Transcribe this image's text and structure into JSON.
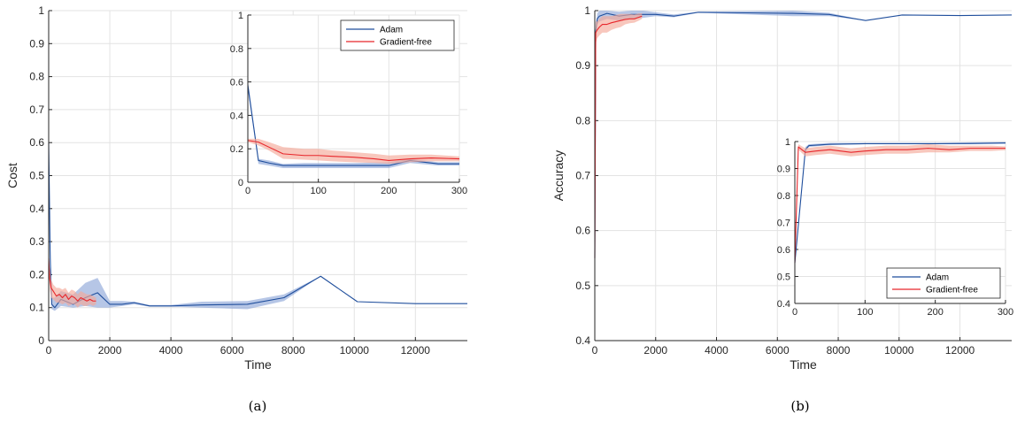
{
  "chart_data": [
    {
      "id": "a",
      "type": "line",
      "caption": "(a)",
      "xlabel": "Time",
      "ylabel": "Cost",
      "xlim": [
        0,
        13700
      ],
      "ylim": [
        0,
        1
      ],
      "xticks": [
        0,
        2000,
        4000,
        6000,
        8000,
        10000,
        12000
      ],
      "yticks": [
        0,
        0.1,
        0.2,
        0.3,
        0.4,
        0.5,
        0.6,
        0.7,
        0.8,
        0.9,
        1
      ],
      "grid": true,
      "series": [
        {
          "name": "Adam",
          "color": "#1f4e9c",
          "band_color": "#8fa8d8",
          "x": [
            0,
            50,
            100,
            200,
            400,
            800,
            1200,
            1600,
            2000,
            2400,
            2800,
            3300,
            4000,
            5000,
            6500,
            7700,
            8900,
            10100,
            12000,
            13700
          ],
          "y": [
            0.6,
            0.25,
            0.11,
            0.1,
            0.125,
            0.11,
            0.13,
            0.145,
            0.11,
            0.11,
            0.115,
            0.105,
            0.105,
            0.108,
            0.11,
            0.13,
            0.195,
            0.118,
            0.112,
            0.112
          ],
          "lower": [
            0.55,
            0.2,
            0.095,
            0.09,
            0.105,
            0.1,
            0.105,
            0.1,
            0.1,
            0.105,
            0.11,
            0.103,
            0.103,
            0.1,
            0.095,
            0.12,
            0.195,
            0.118,
            0.112,
            0.112
          ],
          "upper": [
            0.65,
            0.3,
            0.13,
            0.13,
            0.15,
            0.14,
            0.175,
            0.19,
            0.12,
            0.12,
            0.118,
            0.108,
            0.108,
            0.118,
            0.12,
            0.14,
            0.195,
            0.118,
            0.112,
            0.112
          ]
        },
        {
          "name": "Gradient-free",
          "color": "#e8262b",
          "band_color": "#f5a99a",
          "x": [
            0,
            30,
            80,
            150,
            250,
            350,
            450,
            550,
            650,
            750,
            850,
            950,
            1050,
            1150,
            1250,
            1350,
            1450,
            1550
          ],
          "y": [
            0.25,
            0.19,
            0.16,
            0.15,
            0.135,
            0.14,
            0.13,
            0.14,
            0.125,
            0.135,
            0.13,
            0.12,
            0.13,
            0.125,
            0.12,
            0.125,
            0.12,
            0.12
          ],
          "lower": [
            0.23,
            0.16,
            0.13,
            0.125,
            0.115,
            0.115,
            0.11,
            0.115,
            0.105,
            0.11,
            0.11,
            0.1,
            0.11,
            0.105,
            0.105,
            0.11,
            0.105,
            0.11
          ],
          "upper": [
            0.27,
            0.22,
            0.185,
            0.17,
            0.16,
            0.16,
            0.155,
            0.16,
            0.145,
            0.155,
            0.15,
            0.14,
            0.15,
            0.145,
            0.14,
            0.14,
            0.135,
            0.13
          ]
        }
      ],
      "inset": {
        "xlim": [
          0,
          300
        ],
        "ylim": [
          0,
          1
        ],
        "xticks": [
          0,
          100,
          200,
          300
        ],
        "yticks": [
          0,
          0.2,
          0.4,
          0.6,
          0.8,
          1
        ],
        "legend": "top-right",
        "series": [
          {
            "name": "Adam",
            "x": [
              0,
              15,
              30,
              50,
              80,
              100,
              150,
              200,
              230,
              270,
              300
            ],
            "y": [
              0.58,
              0.13,
              0.115,
              0.1,
              0.1,
              0.1,
              0.1,
              0.1,
              0.13,
              0.11,
              0.11
            ],
            "lower": [
              0.55,
              0.11,
              0.1,
              0.085,
              0.085,
              0.085,
              0.085,
              0.085,
              0.115,
              0.1,
              0.1
            ],
            "upper": [
              0.61,
              0.14,
              0.13,
              0.11,
              0.115,
              0.115,
              0.115,
              0.12,
              0.14,
              0.12,
              0.12
            ]
          },
          {
            "name": "Gradient-free",
            "x": [
              0,
              15,
              30,
              50,
              80,
              100,
              120,
              150,
              180,
              200,
              230,
              260,
              300
            ],
            "y": [
              0.25,
              0.24,
              0.21,
              0.17,
              0.16,
              0.16,
              0.155,
              0.15,
              0.14,
              0.13,
              0.14,
              0.145,
              0.14
            ],
            "lower": [
              0.24,
              0.22,
              0.19,
              0.14,
              0.135,
              0.13,
              0.125,
              0.12,
              0.115,
              0.11,
              0.12,
              0.125,
              0.125
            ],
            "upper": [
              0.26,
              0.26,
              0.24,
              0.21,
              0.2,
              0.2,
              0.19,
              0.18,
              0.17,
              0.16,
              0.165,
              0.165,
              0.155
            ]
          }
        ]
      }
    },
    {
      "id": "b",
      "type": "line",
      "caption": "(b)",
      "xlabel": "Time",
      "ylabel": "Accuracy",
      "xlim": [
        0,
        13700
      ],
      "ylim": [
        0.4,
        1
      ],
      "xticks": [
        0,
        2000,
        4000,
        6000,
        8000,
        10000,
        12000
      ],
      "yticks": [
        0.4,
        0.5,
        0.6,
        0.7,
        0.8,
        0.9,
        1
      ],
      "grid": true,
      "series": [
        {
          "name": "Adam",
          "color": "#1f4e9c",
          "band_color": "#8fa8d8",
          "x": [
            0,
            30,
            80,
            150,
            400,
            800,
            1200,
            1600,
            2000,
            2600,
            3400,
            5000,
            6500,
            7700,
            8900,
            10100,
            12000,
            13700
          ],
          "y": [
            0.55,
            0.96,
            0.985,
            0.99,
            0.995,
            0.99,
            0.993,
            0.993,
            0.993,
            0.99,
            0.997,
            0.996,
            0.995,
            0.993,
            0.982,
            0.992,
            0.991,
            0.992
          ],
          "lower": [
            0.55,
            0.95,
            0.975,
            0.98,
            0.985,
            0.982,
            0.985,
            0.987,
            0.99,
            0.988,
            0.996,
            0.993,
            0.99,
            0.99,
            0.982,
            0.992,
            0.991,
            0.992
          ],
          "upper": [
            0.55,
            0.97,
            0.995,
            1.0,
            1.0,
            0.998,
            1.0,
            1.0,
            0.997,
            0.993,
            0.998,
            0.999,
            1.0,
            0.996,
            0.982,
            0.992,
            0.991,
            0.992
          ]
        },
        {
          "name": "Gradient-free",
          "color": "#e8262b",
          "band_color": "#f5a99a",
          "x": [
            0,
            30,
            80,
            150,
            250,
            400,
            550,
            700,
            850,
            1000,
            1150,
            1300,
            1450,
            1550
          ],
          "y": [
            0.55,
            0.96,
            0.965,
            0.97,
            0.975,
            0.975,
            0.978,
            0.98,
            0.982,
            0.984,
            0.985,
            0.985,
            0.988,
            0.99
          ],
          "lower": [
            0.55,
            0.94,
            0.95,
            0.955,
            0.96,
            0.96,
            0.965,
            0.968,
            0.97,
            0.975,
            0.977,
            0.978,
            0.982,
            0.985
          ],
          "upper": [
            0.55,
            0.98,
            0.98,
            0.985,
            0.99,
            0.99,
            0.99,
            0.992,
            0.994,
            0.994,
            0.994,
            0.993,
            0.995,
            0.995
          ]
        }
      ],
      "inset": {
        "xlim": [
          0,
          300
        ],
        "ylim": [
          0.4,
          1
        ],
        "xticks": [
          0,
          100,
          200,
          300
        ],
        "yticks": [
          0.4,
          0.5,
          0.6,
          0.7,
          0.8,
          0.9,
          1
        ],
        "legend": "bottom-right",
        "series": [
          {
            "name": "Adam",
            "x": [
              0,
              15,
              20,
              50,
              100,
              150,
              200,
              250,
              300
            ],
            "y": [
              0.55,
              0.97,
              0.985,
              0.99,
              0.992,
              0.992,
              0.992,
              0.993,
              0.995
            ],
            "lower": [
              0.55,
              0.96,
              0.98,
              0.987,
              0.99,
              0.99,
              0.99,
              0.99,
              0.992
            ],
            "upper": [
              0.55,
              0.98,
              0.99,
              0.995,
              0.995,
              0.995,
              0.995,
              0.997,
              0.998
            ]
          },
          {
            "name": "Gradient-free",
            "x": [
              0,
              5,
              15,
              30,
              50,
              80,
              100,
              130,
              160,
              190,
              220,
              250,
              280,
              300
            ],
            "y": [
              0.55,
              0.98,
              0.96,
              0.965,
              0.97,
              0.96,
              0.965,
              0.97,
              0.97,
              0.975,
              0.97,
              0.975,
              0.975,
              0.975
            ],
            "lower": [
              0.55,
              0.97,
              0.945,
              0.95,
              0.955,
              0.945,
              0.95,
              0.955,
              0.955,
              0.96,
              0.96,
              0.965,
              0.965,
              0.968
            ],
            "upper": [
              0.55,
              0.99,
              0.975,
              0.98,
              0.985,
              0.975,
              0.98,
              0.985,
              0.985,
              0.99,
              0.985,
              0.985,
              0.985,
              0.982
            ]
          }
        ]
      }
    }
  ]
}
